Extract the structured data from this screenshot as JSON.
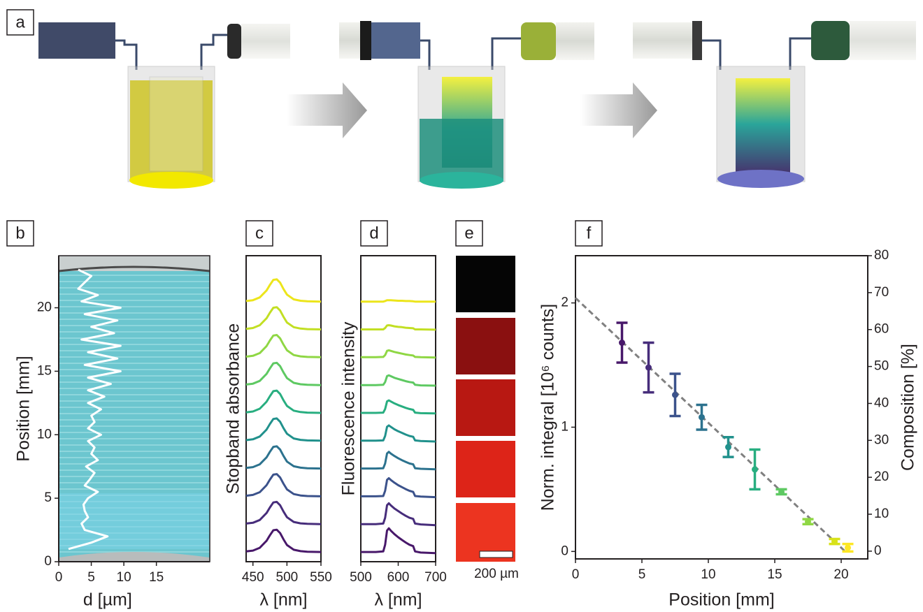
{
  "panel_a": {
    "label": "a"
  },
  "panel_e": {
    "label": "e",
    "scale_bar": "200 µm"
  },
  "chart_data": [
    {
      "type": "line",
      "label": "b",
      "xlabel": "d [µm]",
      "ylabel": "Position [mm]",
      "color": "#ffffff",
      "x": [
        1.5,
        5,
        7.5,
        4,
        3.5,
        4.5,
        4,
        3.8,
        4.5,
        6,
        4,
        4.8,
        5.5,
        4.2,
        6,
        5,
        5.5,
        4.5,
        6.5,
        4.5,
        5.5,
        5,
        6.5,
        4.5,
        7,
        4.5,
        8,
        4.5,
        9.5,
        4,
        9,
        4.5,
        9.5,
        3.5,
        8.5,
        5,
        9,
        4,
        9.5,
        3.5,
        6,
        3,
        4,
        5,
        3
      ],
      "values": [
        1,
        1.5,
        2,
        2.5,
        3,
        3.5,
        4,
        4.5,
        5,
        5.5,
        6,
        6.5,
        7,
        7.5,
        8,
        8.5,
        9,
        9.5,
        10,
        10.5,
        11,
        11.5,
        12,
        12.5,
        13,
        13.5,
        14,
        14.5,
        15,
        15.5,
        16,
        16.5,
        17,
        17.5,
        18,
        18.5,
        19,
        19.5,
        20,
        20.5,
        21,
        21.5,
        22,
        22.5,
        23
      ],
      "xlim": [
        0,
        23.2
      ],
      "ylim": [
        0,
        24.1
      ],
      "xticks": [
        0,
        5,
        10,
        15
      ],
      "yticks": [
        0,
        5,
        10,
        15,
        20
      ]
    },
    {
      "type": "line",
      "label": "c",
      "xlabel": "λ [nm]",
      "ylabel": "Stopband absorbance",
      "x": [
        440,
        450,
        460,
        470,
        475,
        480,
        485,
        490,
        495,
        500,
        510,
        520,
        530,
        550
      ],
      "xlim": [
        440,
        550
      ],
      "ylim": [
        0,
        11
      ],
      "xticks": [
        450,
        500,
        550
      ],
      "series": [
        {
          "color": "#48186a",
          "values": [
            0.37,
            0.4,
            0.5,
            0.75,
            0.95,
            1.13,
            1.15,
            1.03,
            0.8,
            0.6,
            0.43,
            0.38,
            0.36,
            0.35
          ]
        },
        {
          "color": "#472d7b",
          "values": [
            1.37,
            1.4,
            1.5,
            1.75,
            1.95,
            2.13,
            2.15,
            2.03,
            1.8,
            1.6,
            1.43,
            1.38,
            1.36,
            1.35
          ]
        },
        {
          "color": "#3b528b",
          "values": [
            2.37,
            2.4,
            2.5,
            2.75,
            2.95,
            3.13,
            3.15,
            3.03,
            2.8,
            2.6,
            2.43,
            2.38,
            2.36,
            2.35
          ]
        },
        {
          "color": "#2c728e",
          "values": [
            3.37,
            3.4,
            3.5,
            3.75,
            3.95,
            4.13,
            4.15,
            4.03,
            3.8,
            3.6,
            3.43,
            3.38,
            3.36,
            3.35
          ]
        },
        {
          "color": "#21918c",
          "values": [
            4.37,
            4.4,
            4.5,
            4.75,
            4.95,
            5.13,
            5.15,
            5.03,
            4.8,
            4.6,
            4.43,
            4.38,
            4.36,
            4.35
          ]
        },
        {
          "color": "#28ae80",
          "values": [
            5.37,
            5.4,
            5.5,
            5.75,
            5.95,
            6.13,
            6.15,
            6.03,
            5.8,
            5.6,
            5.43,
            5.38,
            5.36,
            5.35
          ]
        },
        {
          "color": "#5ec962",
          "values": [
            6.37,
            6.4,
            6.5,
            6.75,
            6.95,
            7.13,
            7.15,
            7.03,
            6.8,
            6.6,
            6.43,
            6.38,
            6.36,
            6.35
          ]
        },
        {
          "color": "#8fd744",
          "values": [
            7.37,
            7.4,
            7.5,
            7.75,
            7.95,
            8.13,
            8.15,
            8.03,
            7.8,
            7.6,
            7.43,
            7.38,
            7.36,
            7.35
          ]
        },
        {
          "color": "#c2df23",
          "values": [
            8.37,
            8.4,
            8.5,
            8.75,
            8.95,
            9.13,
            9.15,
            9.03,
            8.8,
            8.6,
            8.43,
            8.38,
            8.36,
            8.35
          ]
        },
        {
          "color": "#ece51b",
          "values": [
            9.37,
            9.4,
            9.5,
            9.75,
            9.95,
            10.13,
            10.15,
            10.03,
            9.8,
            9.6,
            9.43,
            9.38,
            9.36,
            9.35
          ]
        }
      ]
    },
    {
      "type": "line",
      "label": "d",
      "xlabel": "λ [nm]",
      "ylabel": "Fluorescence intensity",
      "x": [
        500,
        540,
        560,
        565,
        570,
        575,
        580,
        590,
        600,
        610,
        620,
        630,
        640,
        645,
        660,
        700
      ],
      "xlim": [
        500,
        700
      ],
      "ylim": [
        0,
        11
      ],
      "xticks": [
        500,
        600,
        700
      ],
      "series": [
        {
          "color": "#48186a",
          "values": [
            0.35,
            0.35,
            0.37,
            0.61,
            1.12,
            1.2,
            1.12,
            0.99,
            0.88,
            0.78,
            0.69,
            0.61,
            0.56,
            0.37,
            0.33,
            0.31
          ]
        },
        {
          "color": "#472d7b",
          "values": [
            1.35,
            1.35,
            1.37,
            1.58,
            2.03,
            2.1,
            2.03,
            1.91,
            1.82,
            1.73,
            1.65,
            1.58,
            1.54,
            1.37,
            1.34,
            1.31
          ]
        },
        {
          "color": "#3b528b",
          "values": [
            2.35,
            2.35,
            2.36,
            2.55,
            2.94,
            3.0,
            2.94,
            2.84,
            2.75,
            2.68,
            2.61,
            2.55,
            2.51,
            2.36,
            2.34,
            2.32
          ]
        },
        {
          "color": "#2c728e",
          "values": [
            3.35,
            3.35,
            3.36,
            3.53,
            3.89,
            3.95,
            3.89,
            3.8,
            3.72,
            3.65,
            3.59,
            3.53,
            3.5,
            3.36,
            3.34,
            3.32
          ]
        },
        {
          "color": "#21918c",
          "values": [
            4.35,
            4.35,
            4.36,
            4.52,
            4.85,
            4.9,
            4.85,
            4.76,
            4.69,
            4.63,
            4.57,
            4.52,
            4.49,
            4.36,
            4.34,
            4.32
          ]
        },
        {
          "color": "#28ae80",
          "values": [
            5.35,
            5.35,
            5.36,
            5.49,
            5.76,
            5.8,
            5.76,
            5.69,
            5.63,
            5.58,
            5.53,
            5.49,
            5.46,
            5.36,
            5.34,
            5.33
          ]
        },
        {
          "color": "#5ec962",
          "values": [
            6.35,
            6.35,
            6.36,
            6.46,
            6.67,
            6.7,
            6.67,
            6.61,
            6.57,
            6.53,
            6.49,
            6.46,
            6.44,
            6.36,
            6.34,
            6.33
          ]
        },
        {
          "color": "#8fd744",
          "values": [
            7.35,
            7.35,
            7.36,
            7.43,
            7.58,
            7.6,
            7.58,
            7.54,
            7.51,
            7.48,
            7.45,
            7.43,
            7.41,
            7.36,
            7.35,
            7.34
          ]
        },
        {
          "color": "#c2df23",
          "values": [
            8.35,
            8.35,
            8.35,
            8.4,
            8.49,
            8.5,
            8.49,
            8.46,
            8.44,
            8.43,
            8.41,
            8.4,
            8.39,
            8.35,
            8.35,
            8.34
          ]
        },
        {
          "color": "#ece51b",
          "values": [
            9.35,
            9.35,
            9.35,
            9.37,
            9.4,
            9.4,
            9.4,
            9.39,
            9.38,
            9.38,
            9.37,
            9.37,
            9.36,
            9.35,
            9.35,
            9.35
          ]
        }
      ]
    },
    {
      "type": "scatter",
      "label": "f",
      "xlabel": "Position [mm]",
      "ylabel": "Norm. integral [10⁶ counts]",
      "y2label": "Composition [%]",
      "x": [
        3.5,
        5.5,
        7.5,
        9.5,
        11.5,
        13.5,
        15.5,
        17.5,
        19.5,
        20.5
      ],
      "values": [
        1.68,
        1.48,
        1.26,
        1.08,
        0.84,
        0.66,
        0.48,
        0.24,
        0.08,
        0.03
      ],
      "errors": [
        0.16,
        0.2,
        0.17,
        0.1,
        0.08,
        0.16,
        0.02,
        0.02,
        0.02,
        0.03
      ],
      "colors": [
        "#48186a",
        "#472d7b",
        "#3b528b",
        "#2c728e",
        "#21918c",
        "#28ae80",
        "#5ec962",
        "#8fd744",
        "#d8e219",
        "#fde725"
      ],
      "fit": {
        "color": "#808080",
        "x": [
          0,
          20.3
        ],
        "values": [
          2.04,
          0
        ]
      },
      "xlim": [
        0,
        22
      ],
      "ylim": [
        -0.06,
        2.38
      ],
      "y2lim": [
        -2.1,
        80
      ],
      "xticks": [
        0,
        5,
        10,
        15,
        20
      ],
      "yticks": [
        0,
        1,
        2
      ],
      "y2ticks": [
        0,
        10,
        20,
        30,
        40,
        50,
        60,
        70,
        80
      ]
    }
  ]
}
